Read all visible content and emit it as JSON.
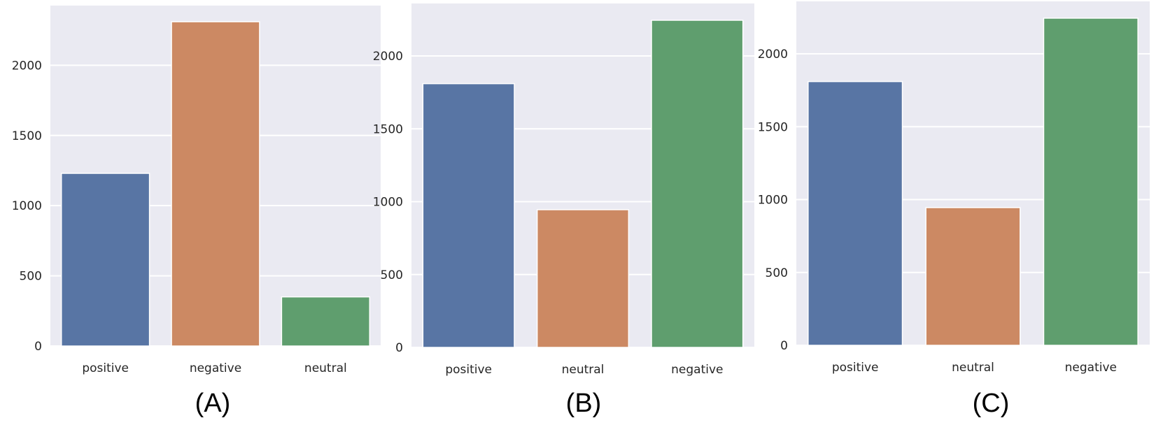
{
  "colors": {
    "plot_background": "#eaeaf2",
    "grid": "#ffffff",
    "blue": "#5875a4",
    "orange": "#cc8963",
    "green": "#5f9e6e"
  },
  "panels": [
    {
      "caption": "(A)"
    },
    {
      "caption": "(B)"
    },
    {
      "caption": "(C)"
    }
  ],
  "chart_data": [
    {
      "type": "bar",
      "title": "",
      "xlabel": "",
      "ylabel": "",
      "categories": [
        "positive",
        "negative",
        "neutral"
      ],
      "values": [
        1230,
        2310,
        350
      ],
      "bar_colors": [
        "#5875a4",
        "#cc8963",
        "#5f9e6e"
      ],
      "ylim": [
        0,
        2425
      ],
      "yticks": [
        0,
        500,
        1000,
        1500,
        2000
      ],
      "ytick_labels": [
        "0",
        "500",
        "1000",
        "1500",
        "2000"
      ],
      "grid": true
    },
    {
      "type": "bar",
      "title": "",
      "xlabel": "",
      "ylabel": "",
      "categories": [
        "positive",
        "neutral",
        "negative"
      ],
      "values": [
        1810,
        945,
        2245
      ],
      "bar_colors": [
        "#5875a4",
        "#cc8963",
        "#5f9e6e"
      ],
      "ylim": [
        0,
        2360
      ],
      "yticks": [
        0,
        500,
        1000,
        1500,
        2000
      ],
      "ytick_labels": [
        "0",
        "500",
        "1000",
        "1500",
        "2000"
      ],
      "grid": true
    },
    {
      "type": "bar",
      "title": "",
      "xlabel": "",
      "ylabel": "",
      "categories": [
        "positive",
        "neutral",
        "negative"
      ],
      "values": [
        1810,
        945,
        2245
      ],
      "bar_colors": [
        "#5875a4",
        "#cc8963",
        "#5f9e6e"
      ],
      "ylim": [
        0,
        2360
      ],
      "yticks": [
        0,
        500,
        1000,
        1500,
        2000
      ],
      "ytick_labels": [
        "0",
        "500",
        "1000",
        "1500",
        "2000"
      ],
      "grid": true
    }
  ]
}
